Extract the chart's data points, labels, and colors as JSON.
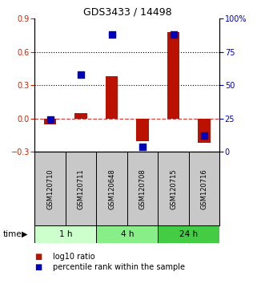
{
  "title": "GDS3433 / 14498",
  "samples": [
    "GSM120710",
    "GSM120711",
    "GSM120648",
    "GSM120708",
    "GSM120715",
    "GSM120716"
  ],
  "time_groups": [
    {
      "label": "1 h",
      "start": 0,
      "end": 2,
      "color": "#ccffcc"
    },
    {
      "label": "4 h",
      "start": 2,
      "end": 4,
      "color": "#88ee88"
    },
    {
      "label": "24 h",
      "start": 4,
      "end": 6,
      "color": "#44cc44"
    }
  ],
  "log10_ratio": [
    -0.05,
    0.05,
    0.38,
    -0.2,
    0.78,
    -0.22
  ],
  "percentile_rank": [
    24,
    58,
    88,
    4,
    88,
    12
  ],
  "ylim_left": [
    -0.3,
    0.9
  ],
  "ylim_right": [
    0,
    100
  ],
  "yticks_left": [
    -0.3,
    0.0,
    0.3,
    0.6,
    0.9
  ],
  "yticks_right": [
    0,
    25,
    50,
    75,
    100
  ],
  "bar_color": "#bb1100",
  "dot_color": "#0000bb",
  "hline_color": "#cc4444",
  "dotted_lines": [
    0.3,
    0.6
  ],
  "bar_width": 0.4,
  "dot_size": 28,
  "background_color": "#ffffff",
  "legend_items": [
    "log10 ratio",
    "percentile rank within the sample"
  ],
  "legend_colors": [
    "#bb1100",
    "#0000bb"
  ]
}
